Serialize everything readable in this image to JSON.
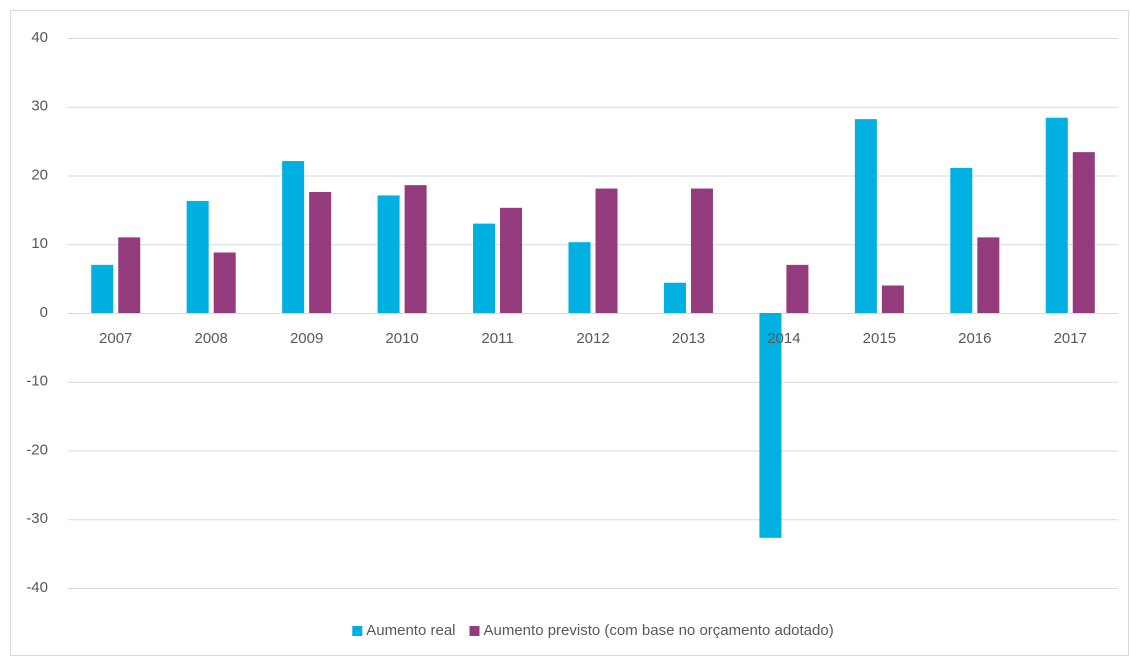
{
  "chart_data": {
    "type": "bar",
    "categories": [
      "2007",
      "2008",
      "2009",
      "2010",
      "2011",
      "2012",
      "2013",
      "2014",
      "2015",
      "2016",
      "2017"
    ],
    "series": [
      {
        "name": "Aumento real",
        "color": "#00b0e0",
        "values": [
          7,
          16.3,
          22.1,
          17.1,
          13,
          10.3,
          4.4,
          -32.7,
          28.2,
          21.1,
          28.4
        ]
      },
      {
        "name": "Aumento previsto (com base no orçamento adotado)",
        "color": "#943b7e",
        "values": [
          11,
          8.8,
          17.6,
          18.6,
          15.3,
          18.1,
          18.1,
          7,
          4,
          11,
          23.4
        ]
      }
    ],
    "ylim": [
      -40,
      40
    ],
    "yticks": [
      -40,
      -30,
      -20,
      -10,
      0,
      10,
      20,
      30,
      40
    ],
    "grid": true,
    "legend": "bottom"
  }
}
